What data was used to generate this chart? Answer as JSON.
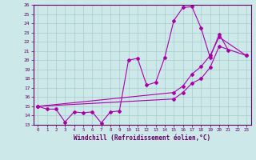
{
  "xlabel": "Windchill (Refroidissement éolien,°C)",
  "background_color": "#cce8e8",
  "grid_color": "#aacccc",
  "line_color": "#aa00aa",
  "xlim": [
    -0.5,
    23.5
  ],
  "ylim": [
    13,
    26
  ],
  "xticks": [
    0,
    1,
    2,
    3,
    4,
    5,
    6,
    7,
    8,
    9,
    10,
    11,
    12,
    13,
    14,
    15,
    16,
    17,
    18,
    19,
    20,
    21,
    22,
    23
  ],
  "yticks": [
    13,
    14,
    15,
    16,
    17,
    18,
    19,
    20,
    21,
    22,
    23,
    24,
    25,
    26
  ],
  "line1_x": [
    0,
    1,
    2,
    3,
    4,
    5,
    6,
    7,
    8,
    9,
    10,
    11,
    12,
    13,
    14,
    15,
    16,
    17,
    18,
    19,
    20,
    21
  ],
  "line1_y": [
    15.0,
    14.7,
    14.7,
    13.3,
    14.4,
    14.3,
    14.4,
    13.2,
    14.4,
    14.5,
    20.0,
    20.2,
    17.3,
    17.6,
    20.3,
    24.3,
    25.7,
    25.8,
    23.5,
    20.3,
    22.8,
    21.1
  ],
  "line2_x": [
    0,
    15,
    16,
    17,
    18,
    19,
    20,
    23
  ],
  "line2_y": [
    15.0,
    16.5,
    17.2,
    18.5,
    19.3,
    20.5,
    22.5,
    20.5
  ],
  "line3_x": [
    0,
    15,
    16,
    17,
    18,
    19,
    20,
    23
  ],
  "line3_y": [
    15.0,
    15.8,
    16.5,
    17.5,
    18.0,
    19.2,
    21.5,
    20.5
  ]
}
